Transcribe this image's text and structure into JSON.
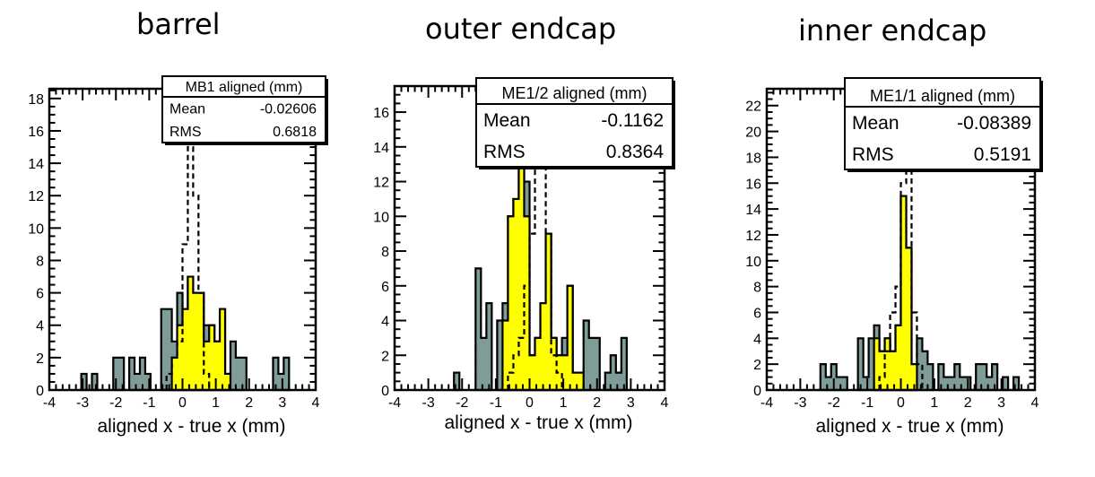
{
  "chart_data": [
    {
      "type": "bar",
      "title": "barrel",
      "xlabel": "aligned x - true x (mm)",
      "ylabel": "",
      "xlim": [
        -4,
        4
      ],
      "ylim": [
        0,
        18.6
      ],
      "x_ticks": [
        -4,
        -3,
        -2,
        -1,
        0,
        1,
        2,
        3,
        4
      ],
      "x_tick_labels": [
        "-4",
        "-3",
        "-2",
        "-1",
        "0",
        "1",
        "2",
        "3",
        "4"
      ],
      "y_ticks": [
        0,
        2,
        4,
        6,
        8,
        10,
        12,
        14,
        16,
        18
      ],
      "y_tick_labels": [
        "0",
        "2",
        "4",
        "6",
        "8",
        "10",
        "12",
        "14",
        "16",
        "18"
      ],
      "bin_width": 0.16,
      "bin_start": -4,
      "colors": {
        "initial": "#7f9c98",
        "aligned": "#ffff00",
        "outline": "#000000"
      },
      "stats_box": {
        "title": "MB1 aligned (mm)",
        "rows": [
          {
            "label": "Mean",
            "value": "-0.02606"
          },
          {
            "label": "RMS",
            "value": "0.6818"
          }
        ]
      },
      "series": [
        {
          "style": "gray-filled",
          "values": [
            0,
            0,
            0,
            0,
            0,
            0,
            1,
            0,
            1,
            0,
            0,
            0,
            2,
            2,
            0,
            2,
            1,
            2,
            1,
            0,
            0,
            5,
            5,
            3,
            6,
            5,
            7,
            6,
            6,
            4,
            4,
            3,
            5,
            1,
            3,
            2,
            2,
            0,
            0,
            0,
            0,
            0,
            2,
            1,
            2,
            0,
            0,
            0,
            0,
            0,
            0
          ]
        },
        {
          "style": "yellow-filled",
          "values": [
            0,
            0,
            0,
            0,
            0,
            0,
            0,
            0,
            0,
            0,
            0,
            0,
            0,
            0,
            0,
            0,
            0,
            0,
            0,
            0,
            0,
            0,
            0,
            2,
            4,
            5,
            7,
            6,
            6,
            3,
            4,
            3,
            5,
            1,
            0,
            0,
            0,
            0,
            0,
            0,
            0,
            0,
            0,
            0,
            0,
            0,
            0,
            0,
            0,
            0,
            0
          ]
        },
        {
          "style": "dashed-outline",
          "values": [
            0,
            0,
            0,
            0,
            0,
            0,
            0,
            0,
            0,
            0,
            0,
            0,
            0,
            0,
            0,
            0,
            0,
            0,
            0,
            0,
            0,
            0,
            1,
            2,
            3,
            9,
            15,
            12,
            6,
            1,
            0,
            0,
            0,
            0,
            0,
            0,
            0,
            0,
            0,
            0,
            0,
            0,
            0,
            0,
            0,
            0,
            0,
            0,
            0,
            0,
            0
          ]
        }
      ]
    },
    {
      "type": "bar",
      "title": "outer endcap",
      "xlabel": "aligned x - true x (mm)",
      "ylabel": "",
      "xlim": [
        -4,
        4
      ],
      "ylim": [
        0,
        17.5
      ],
      "x_ticks": [
        -4,
        -3,
        -2,
        -1,
        0,
        1,
        2,
        3,
        4
      ],
      "x_tick_labels": [
        "-4",
        "-3",
        "-2",
        "-1",
        "0",
        "1",
        "2",
        "3",
        "4"
      ],
      "y_ticks": [
        0,
        2,
        4,
        6,
        8,
        10,
        12,
        14,
        16
      ],
      "y_tick_labels": [
        "0",
        "2",
        "4",
        "6",
        "8",
        "10",
        "12",
        "14",
        "16"
      ],
      "bin_width": 0.16,
      "bin_start": -4,
      "colors": {
        "initial": "#7f9c98",
        "aligned": "#ffff00",
        "outline": "#000000"
      },
      "stats_box": {
        "title": "ME1/2 aligned (mm)",
        "rows": [
          {
            "label": "Mean",
            "value": "-0.1162"
          },
          {
            "label": "RMS",
            "value": "0.8364"
          }
        ]
      },
      "series": [
        {
          "style": "gray-filled",
          "values": [
            0,
            0,
            0,
            0,
            0,
            0,
            0,
            0,
            0,
            0,
            0,
            1,
            0,
            0,
            0,
            7,
            3,
            5,
            0,
            4,
            5,
            10,
            11,
            13,
            12,
            2,
            3,
            5,
            9,
            3,
            2,
            3,
            6,
            1,
            1,
            4,
            3,
            3,
            0,
            1,
            2,
            1,
            3,
            0,
            0,
            0,
            0,
            0,
            0,
            0,
            0
          ]
        },
        {
          "style": "yellow-filled",
          "values": [
            0,
            0,
            0,
            0,
            0,
            0,
            0,
            0,
            0,
            0,
            0,
            0,
            0,
            0,
            0,
            0,
            0,
            0,
            0,
            0,
            4,
            10,
            11,
            13,
            10,
            2,
            3,
            5,
            9,
            3,
            2,
            2,
            6,
            1,
            1,
            0,
            0,
            0,
            0,
            0,
            0,
            0,
            0,
            0,
            0,
            0,
            0,
            0,
            0,
            0,
            0
          ]
        },
        {
          "style": "dashed-outline",
          "values": [
            0,
            0,
            0,
            0,
            0,
            0,
            0,
            0,
            0,
            0,
            0,
            0,
            0,
            0,
            0,
            0,
            0,
            0,
            0,
            0,
            0,
            1,
            2,
            3,
            6,
            9,
            13,
            17,
            9,
            2,
            1,
            0,
            0,
            0,
            0,
            0,
            0,
            0,
            0,
            0,
            0,
            0,
            0,
            0,
            0,
            0,
            0,
            0,
            0,
            0,
            0
          ]
        }
      ]
    },
    {
      "type": "bar",
      "title": "inner endcap",
      "xlabel": "aligned x - true x (mm)",
      "ylabel": "",
      "xlim": [
        -4,
        4
      ],
      "ylim": [
        0,
        23.3
      ],
      "x_ticks": [
        -4,
        -3,
        -2,
        -1,
        0,
        1,
        2,
        3,
        4
      ],
      "x_tick_labels": [
        "-4",
        "-3",
        "-2",
        "-1",
        "0",
        "1",
        "2",
        "3",
        "4"
      ],
      "y_ticks": [
        0,
        2,
        4,
        6,
        8,
        10,
        12,
        14,
        16,
        18,
        20,
        22
      ],
      "y_tick_labels": [
        "0",
        "2",
        "4",
        "6",
        "8",
        "10",
        "12",
        "14",
        "16",
        "18",
        "20",
        "22"
      ],
      "bin_width": 0.16,
      "bin_start": -4,
      "colors": {
        "initial": "#7f9c98",
        "aligned": "#ffff00",
        "outline": "#000000"
      },
      "stats_box": {
        "title": "ME1/1 aligned (mm)",
        "rows": [
          {
            "label": "Mean",
            "value": "-0.08389"
          },
          {
            "label": "RMS",
            "value": "0.5191"
          }
        ]
      },
      "series": [
        {
          "style": "gray-filled",
          "values": [
            0,
            0,
            0,
            0,
            0,
            0,
            0,
            0,
            0,
            0,
            2,
            1,
            2,
            1,
            1,
            0,
            0,
            4,
            1,
            4,
            5,
            3,
            4,
            3,
            5,
            15,
            11,
            2,
            4,
            3,
            2,
            0,
            2,
            1,
            1,
            2,
            1,
            1,
            0,
            2,
            2,
            1,
            2,
            0,
            1,
            0,
            1,
            0,
            0,
            0,
            0
          ]
        },
        {
          "style": "yellow-filled",
          "values": [
            0,
            0,
            0,
            0,
            0,
            0,
            0,
            0,
            0,
            0,
            0,
            0,
            0,
            0,
            0,
            0,
            0,
            0,
            0,
            0,
            4,
            3,
            4,
            3,
            5,
            15,
            11,
            2,
            0,
            0,
            0,
            0,
            0,
            0,
            0,
            0,
            0,
            0,
            0,
            0,
            0,
            0,
            0,
            0,
            0,
            0,
            0,
            0,
            0,
            0,
            0
          ]
        },
        {
          "style": "dashed-outline",
          "values": [
            0,
            0,
            0,
            0,
            0,
            0,
            0,
            0,
            0,
            0,
            0,
            0,
            0,
            0,
            0,
            0,
            0,
            0,
            0,
            0,
            0,
            1,
            3,
            6,
            8,
            16,
            17,
            6,
            2,
            0,
            0,
            0,
            0,
            0,
            0,
            0,
            0,
            0,
            0,
            0,
            0,
            0,
            0,
            0,
            0,
            0,
            0,
            0,
            0,
            0,
            0
          ]
        }
      ]
    }
  ]
}
